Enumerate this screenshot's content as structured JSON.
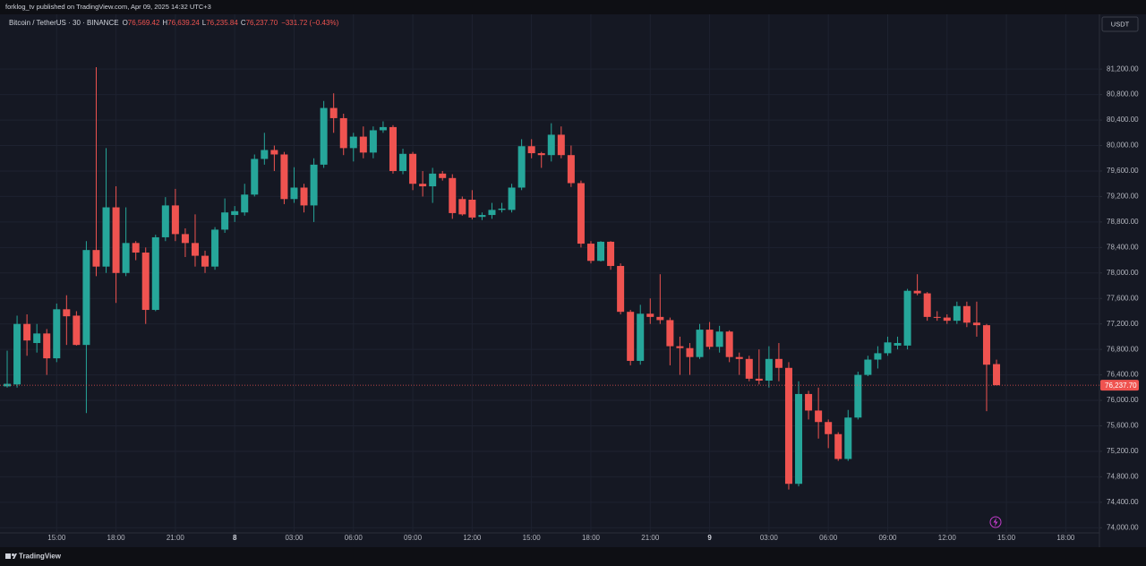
{
  "header": {
    "publisher": "forklog_tv published on TradingView.com, Apr 09, 2025 14:32 UTC+3",
    "brand": "TradingView"
  },
  "chart_data": {
    "type": "candlestick",
    "title": "Bitcoin / TetherUS · 30 · BINANCE",
    "ohlc_legend": [
      {
        "key": "O",
        "value": "76,569.42"
      },
      {
        "key": "H",
        "value": "76,639.24"
      },
      {
        "key": "L",
        "value": "76,235.84"
      },
      {
        "key": "C",
        "value": "76,237.70"
      }
    ],
    "change": "−331.72 (−0.43%)",
    "currency": "USDT",
    "up_color": "#26a69a",
    "down_color": "#ef5350",
    "grid": true,
    "categories": [
      null,
      null,
      null,
      null,
      null,
      "15:00",
      null,
      null,
      null,
      null,
      null,
      "18:00",
      null,
      null,
      null,
      null,
      null,
      "21:00",
      null,
      null,
      null,
      null,
      null,
      "8",
      null,
      null,
      null,
      null,
      null,
      "03:00",
      null,
      null,
      null,
      null,
      null,
      "06:00",
      null,
      null,
      null,
      null,
      null,
      "09:00",
      null,
      null,
      null,
      null,
      null,
      "12:00",
      null,
      null,
      null,
      null,
      null,
      "15:00",
      null,
      null,
      null,
      null,
      null,
      "18:00",
      null,
      null,
      null,
      null,
      null,
      "21:00",
      null,
      null,
      null,
      null,
      null,
      "9",
      null,
      null,
      null,
      null,
      null,
      "03:00",
      null,
      null,
      null,
      null,
      null,
      "06:00",
      null,
      null,
      null,
      null,
      null,
      "09:00",
      null,
      null,
      null,
      null,
      null,
      "12:00",
      null,
      null,
      null,
      null,
      null,
      "15:00",
      null,
      null,
      null,
      null,
      null,
      "18:00",
      null,
      null
    ],
    "open": [
      76220,
      76250,
      77200,
      76900,
      77050,
      76660,
      77430,
      77330,
      76870,
      78360,
      78100,
      79030,
      78000,
      78470,
      78320,
      77420,
      78560,
      79060,
      78610,
      78470,
      78270,
      78100,
      78680,
      78910,
      78950,
      79230,
      79790,
      79930,
      79860,
      79160,
      79340,
      79060,
      79700,
      80590,
      80430,
      79960,
      80140,
      79890,
      80240,
      80290,
      79600,
      79870,
      79400,
      79360,
      79560,
      79490,
      79160,
      79150,
      78880,
      78910,
      78990,
      78990,
      79340,
      79990,
      79880,
      79850,
      80170,
      79850,
      79410,
      78460,
      78190,
      78490,
      78110,
      77390,
      76620,
      77360,
      77310,
      77260,
      76850,
      76820,
      76680,
      77110,
      76840,
      77080,
      76680,
      76650,
      76340,
      76310,
      76650,
      76510,
      74690,
      76100,
      75840,
      75660,
      75470,
      75080,
      75730,
      76400,
      76640,
      76740,
      76860,
      76860,
      77720,
      77680,
      77310,
      77300,
      77250,
      77480,
      77220,
      77180,
      76569.42,
      null,
      null,
      null,
      null,
      null,
      null,
      null,
      null,
      null
    ],
    "high": [
      76780,
      77330,
      77350,
      77200,
      77120,
      77520,
      77650,
      77400,
      78500,
      81230,
      79960,
      79360,
      79030,
      78500,
      78400,
      78600,
      79190,
      79320,
      78700,
      78920,
      78350,
      78720,
      79170,
      79050,
      79400,
      79860,
      80200,
      80000,
      79900,
      79660,
      79400,
      79800,
      80700,
      80820,
      80500,
      80200,
      80300,
      80300,
      80380,
      80320,
      79950,
      79900,
      79600,
      79650,
      79600,
      79550,
      79200,
      79300,
      78950,
      79100,
      79100,
      79400,
      80100,
      80100,
      79900,
      80350,
      80300,
      80000,
      79450,
      78500,
      78500,
      78500,
      78150,
      77420,
      77500,
      77600,
      77980,
      77300,
      77000,
      76900,
      77200,
      77230,
      77170,
      77100,
      76750,
      76700,
      76800,
      76850,
      76900,
      76600,
      76300,
      76150,
      76200,
      75700,
      75500,
      75850,
      76450,
      76700,
      76850,
      77000,
      77000,
      77750,
      77980,
      77700,
      77400,
      77350,
      77550,
      77550,
      77550,
      77200,
      76639.24,
      null,
      null,
      null,
      null,
      null,
      null,
      null,
      null,
      null
    ],
    "low": [
      76200,
      76200,
      76700,
      76750,
      76400,
      76600,
      76870,
      76860,
      75800,
      77950,
      78000,
      77530,
      77950,
      78200,
      77200,
      77400,
      78500,
      78500,
      78250,
      78100,
      78000,
      78050,
      78630,
      78800,
      78900,
      79200,
      79700,
      79600,
      79080,
      79100,
      78950,
      78800,
      79650,
      80200,
      79850,
      79750,
      79800,
      79800,
      80200,
      79560,
      79550,
      79300,
      79200,
      79100,
      79450,
      78850,
      78900,
      78840,
      78830,
      78850,
      78950,
      78950,
      79300,
      79800,
      79650,
      79750,
      79800,
      79350,
      78400,
      78150,
      78180,
      78050,
      77350,
      76550,
      76560,
      77200,
      77200,
      76550,
      76400,
      76400,
      76650,
      76800,
      76750,
      76600,
      76400,
      76300,
      76250,
      76200,
      76300,
      74600,
      74650,
      75700,
      75400,
      75250,
      75050,
      75050,
      75700,
      76380,
      76500,
      76700,
      76800,
      76800,
      77650,
      77250,
      77250,
      77200,
      77200,
      77150,
      77000,
      75830,
      76235.84,
      null,
      null,
      null,
      null,
      null,
      null,
      null,
      null,
      null
    ],
    "close": [
      76260,
      77200,
      76940,
      77050,
      76660,
      77430,
      77320,
      76870,
      78360,
      78100,
      79030,
      78000,
      78470,
      78320,
      77420,
      78560,
      79060,
      78610,
      78470,
      78270,
      78100,
      78680,
      78950,
      78970,
      79230,
      79790,
      79930,
      79860,
      79160,
      79340,
      79060,
      79700,
      80590,
      80430,
      79960,
      80140,
      79890,
      80240,
      80290,
      79600,
      79870,
      79400,
      79360,
      79560,
      79490,
      78940,
      78920,
      78870,
      78910,
      78990,
      79010,
      79340,
      79990,
      79880,
      79850,
      80170,
      79850,
      79410,
      78460,
      78190,
      78490,
      78110,
      77390,
      76620,
      77360,
      77310,
      77260,
      76850,
      76820,
      76680,
      77110,
      76840,
      77080,
      76680,
      76650,
      76340,
      76310,
      76650,
      76510,
      74690,
      76100,
      75840,
      75660,
      75470,
      75080,
      75730,
      76400,
      76640,
      76740,
      76910,
      76900,
      77720,
      77680,
      77310,
      77300,
      77250,
      77480,
      77220,
      77180,
      76560,
      76237.7,
      null,
      null,
      null,
      null,
      null,
      null,
      null,
      null,
      null
    ],
    "last_price": {
      "value": 76237.7,
      "label": "76,237.70"
    },
    "ylim": [
      73920,
      82060
    ],
    "yticks": [
      {
        "value": 74000,
        "label": "74,000.00"
      },
      {
        "value": 74400,
        "label": "74,400.00"
      },
      {
        "value": 74800,
        "label": "74,800.00"
      },
      {
        "value": 75200,
        "label": "75,200.00"
      },
      {
        "value": 75600,
        "label": "75,600.00"
      },
      {
        "value": 76000,
        "label": "76,000.00"
      },
      {
        "value": 76400,
        "label": "76,400.00"
      },
      {
        "value": 76800,
        "label": "76,800.00"
      },
      {
        "value": 77200,
        "label": "77,200.00"
      },
      {
        "value": 77600,
        "label": "77,600.00"
      },
      {
        "value": 78000,
        "label": "78,000.00"
      },
      {
        "value": 78400,
        "label": "78,400.00"
      },
      {
        "value": 78800,
        "label": "78,800.00"
      },
      {
        "value": 79200,
        "label": "79,200.00"
      },
      {
        "value": 79600,
        "label": "79,600.00"
      },
      {
        "value": 80000,
        "label": "80,000.00"
      },
      {
        "value": 80400,
        "label": "80,400.00"
      },
      {
        "value": 80800,
        "label": "80,800.00"
      },
      {
        "value": 81200,
        "label": "81,200.00"
      }
    ]
  }
}
